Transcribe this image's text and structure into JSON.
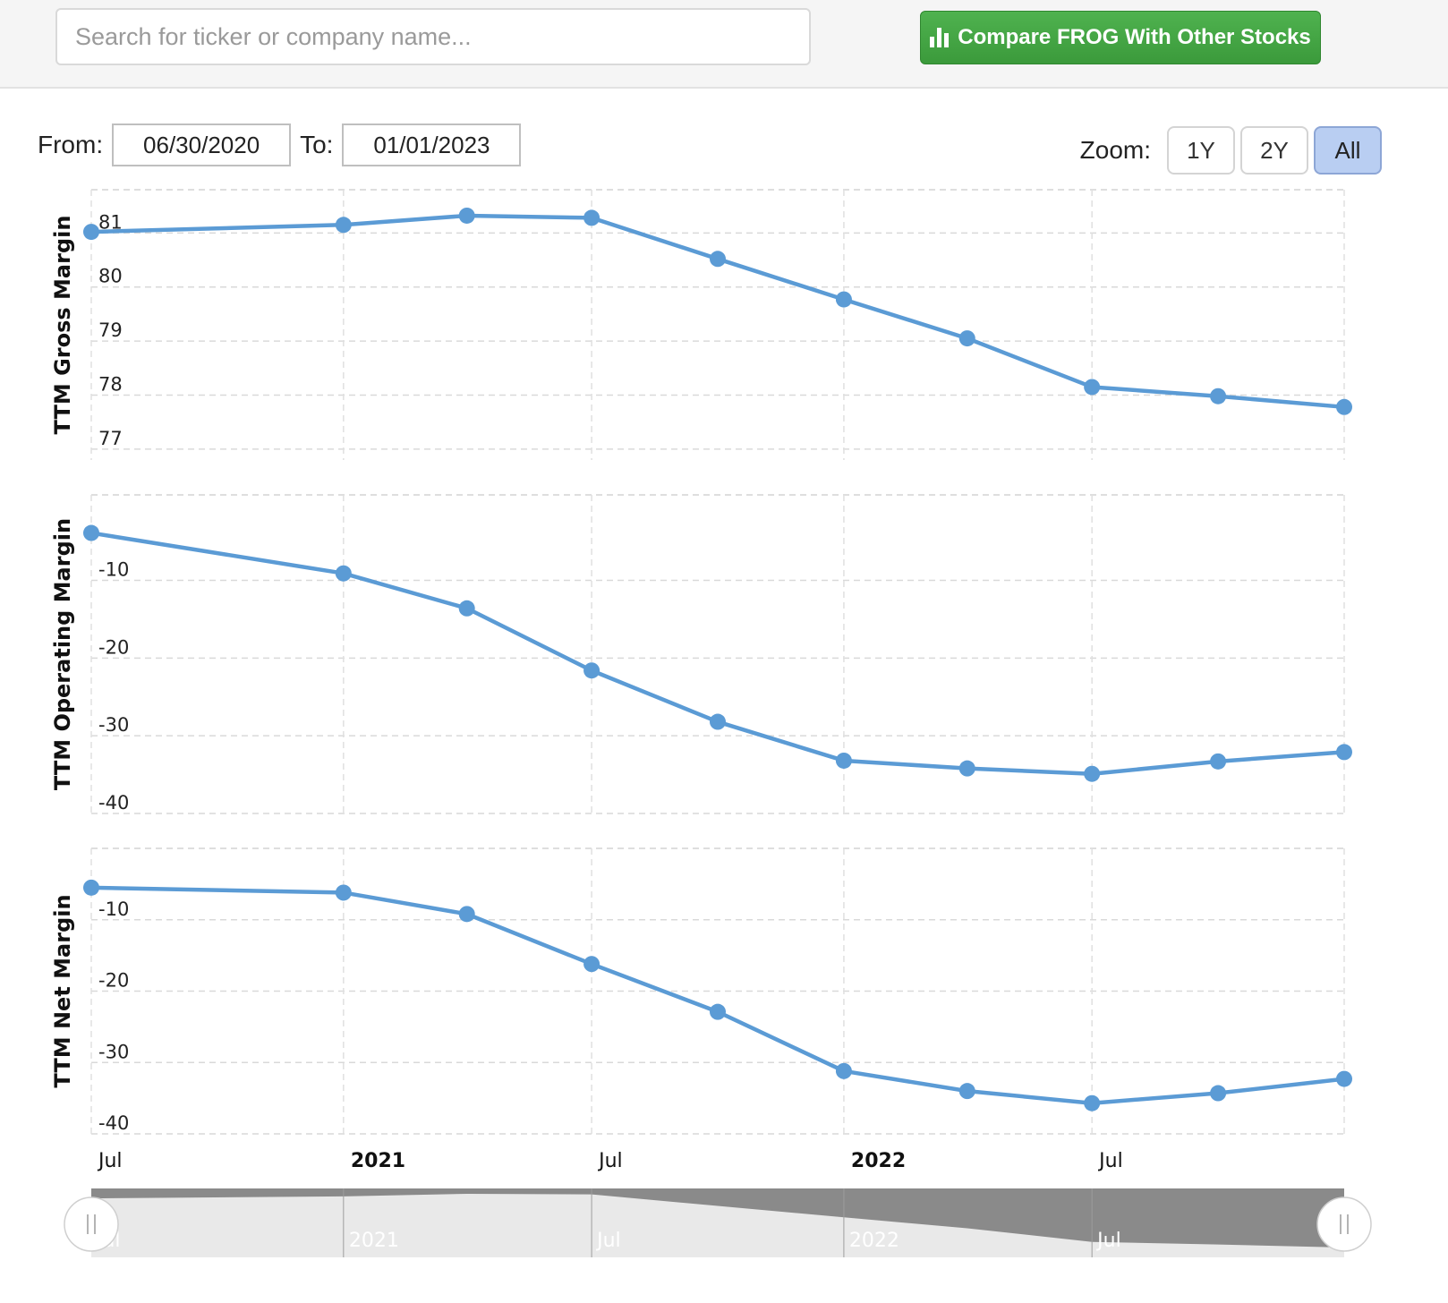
{
  "search": {
    "placeholder": "Search for ticker or company name..."
  },
  "compare_button": {
    "label": "Compare FROG With Other Stocks",
    "icon": "bar-chart-icon",
    "color": "#43a843"
  },
  "date_range": {
    "from_label": "From:",
    "from_value": "06/30/2020",
    "to_label": "To:",
    "to_value": "01/01/2023"
  },
  "zoom": {
    "label": "Zoom:",
    "options": [
      "1Y",
      "2Y",
      "All"
    ],
    "selected": "All"
  },
  "chart_data": {
    "type": "line",
    "color": "#5b9bd5",
    "x": [
      "2020-06-30",
      "2020-12-31",
      "2021-03-31",
      "2021-06-30",
      "2021-09-30",
      "2021-12-31",
      "2022-03-31",
      "2022-06-30",
      "2022-09-30",
      "2022-12-31"
    ],
    "x_ticks": [
      {
        "label": "Jul",
        "bold": false
      },
      {
        "label": "2021",
        "bold": true
      },
      {
        "label": "Jul",
        "bold": false
      },
      {
        "label": "2022",
        "bold": true
      },
      {
        "label": "Jul",
        "bold": false
      }
    ],
    "grid": true,
    "panels": [
      {
        "ylabel": "TTM Gross Margin",
        "yticks": [
          81,
          80,
          79,
          78,
          77
        ],
        "ylim": [
          76.8,
          81.8
        ],
        "values": [
          81.02,
          81.15,
          81.32,
          81.28,
          80.52,
          79.77,
          79.05,
          78.15,
          77.98,
          77.78
        ]
      },
      {
        "ylabel": "TTM Operating Margin",
        "yticks": [
          -10,
          -20,
          -30,
          -40
        ],
        "ylim": [
          -40,
          1
        ],
        "values": [
          -3.9,
          -9.1,
          -13.6,
          -21.6,
          -28.2,
          -33.2,
          -34.2,
          -34.9,
          -33.3,
          -32.1
        ]
      },
      {
        "ylabel": "TTM Net Margin",
        "yticks": [
          -10,
          -20,
          -30,
          -40
        ],
        "ylim": [
          -40,
          0
        ],
        "values": [
          -5.5,
          -6.2,
          -9.2,
          -16.2,
          -22.9,
          -31.2,
          -34.0,
          -35.7,
          -34.3,
          -32.3
        ]
      }
    ],
    "navigator": {
      "labels": [
        "Jul",
        "2021",
        "Jul",
        "2022",
        "Jul"
      ]
    }
  }
}
